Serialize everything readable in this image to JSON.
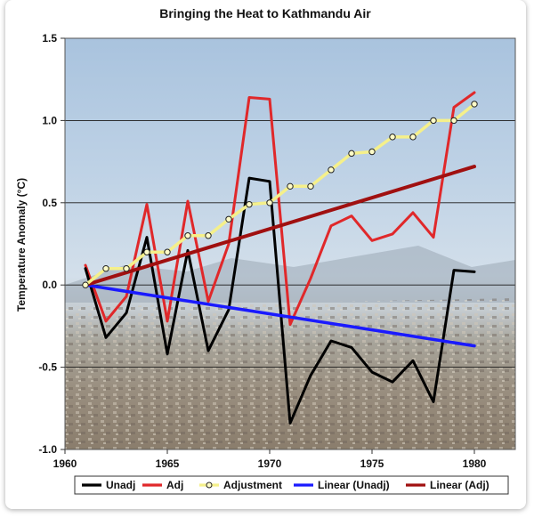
{
  "chart_data": {
    "type": "line",
    "title": "Bringing the Heat to Kathmandu Air",
    "ylabel": "Temperature Anomaly (°C)",
    "xlabel": "",
    "xlim": [
      1960,
      1982
    ],
    "ylim": [
      -1.0,
      1.5
    ],
    "x_ticks": [
      1960,
      1965,
      1970,
      1975,
      1980
    ],
    "y_ticks": [
      -1.0,
      -0.5,
      0.0,
      0.5,
      1.0,
      1.5
    ],
    "y_tick_labels": [
      "-1.0",
      "-0.5",
      "0.0",
      "0.5",
      "1.0",
      "1.5"
    ],
    "grid": "horizontal",
    "legend_position": "bottom",
    "background": "photo of Kathmandu city skyline",
    "series": [
      {
        "name": "Unadj",
        "color": "#000000",
        "x": [
          1961,
          1962,
          1963,
          1964,
          1965,
          1966,
          1967,
          1968,
          1969,
          1970,
          1971,
          1972,
          1973,
          1974,
          1975,
          1976,
          1977,
          1978,
          1979,
          1980
        ],
        "values": [
          0.1,
          -0.32,
          -0.17,
          0.29,
          -0.42,
          0.21,
          -0.4,
          -0.15,
          0.65,
          0.63,
          -0.84,
          -0.55,
          -0.34,
          -0.38,
          -0.53,
          -0.59,
          -0.46,
          -0.71,
          0.09,
          0.08
        ]
      },
      {
        "name": "Adj",
        "color": "#e0282a",
        "x": [
          1961,
          1962,
          1963,
          1964,
          1965,
          1966,
          1967,
          1968,
          1969,
          1970,
          1971,
          1972,
          1973,
          1974,
          1975,
          1976,
          1977,
          1978,
          1979,
          1980
        ],
        "values": [
          0.12,
          -0.22,
          -0.07,
          0.49,
          -0.22,
          0.51,
          -0.1,
          0.25,
          1.14,
          1.13,
          -0.24,
          0.04,
          0.36,
          0.42,
          0.27,
          0.31,
          0.44,
          0.29,
          1.08,
          1.17
        ]
      },
      {
        "name": "Adjustment",
        "color": "#f5f08a",
        "marker": "circle",
        "x": [
          1961,
          1962,
          1963,
          1964,
          1965,
          1966,
          1967,
          1968,
          1969,
          1970,
          1971,
          1972,
          1973,
          1974,
          1975,
          1976,
          1977,
          1978,
          1979,
          1980
        ],
        "values": [
          0.0,
          0.1,
          0.1,
          0.2,
          0.2,
          0.3,
          0.3,
          0.4,
          0.49,
          0.5,
          0.6,
          0.6,
          0.7,
          0.8,
          0.81,
          0.9,
          0.9,
          1.0,
          1.0,
          1.1
        ]
      },
      {
        "name": "Linear (Unadj)",
        "color": "#1a1aff",
        "x": [
          1961,
          1980
        ],
        "values": [
          0.0,
          -0.37
        ]
      },
      {
        "name": "Linear (Adj)",
        "color": "#a01010",
        "x": [
          1961,
          1980
        ],
        "values": [
          0.0,
          0.72
        ]
      }
    ]
  }
}
